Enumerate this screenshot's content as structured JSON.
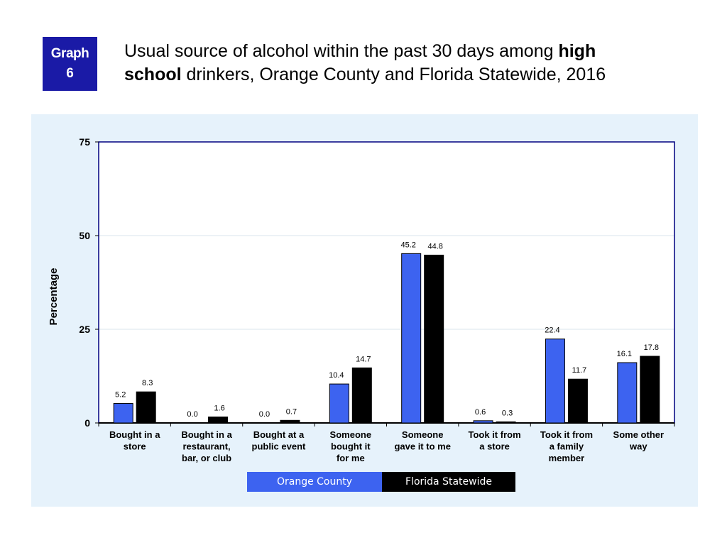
{
  "badge": {
    "line1": "Graph",
    "line2": "6"
  },
  "title": {
    "part1": "Usual source of alcohol within the past 30 days among ",
    "bold1": "high",
    "bold2": "school",
    "part2": " drinkers, Orange County and Florida Statewide, 2016"
  },
  "colors": {
    "orange_county": "#3d63f0",
    "florida": "#000000",
    "panel": "#e6f2fb",
    "badge": "#1a1aa6"
  },
  "chart_data": {
    "type": "bar",
    "ylabel": "Percentage",
    "xlabel": "",
    "ylim": [
      0,
      75
    ],
    "yticks": [
      0,
      25,
      50,
      75
    ],
    "grid": true,
    "legend_placement": "bottom",
    "categories": [
      [
        "Bought in a",
        "store"
      ],
      [
        "Bought in a",
        "restaurant,",
        "bar, or club"
      ],
      [
        "Bought at a",
        "public event"
      ],
      [
        "Someone",
        "bought it",
        "for me"
      ],
      [
        "Someone",
        "gave it to me"
      ],
      [
        "Took it from",
        "a store"
      ],
      [
        "Took it from",
        "a family",
        "member"
      ],
      [
        "Some other",
        "way"
      ]
    ],
    "series": [
      {
        "name": "Orange County",
        "values": [
          5.2,
          0.0,
          0.0,
          10.4,
          45.2,
          0.6,
          22.4,
          16.1
        ],
        "labels": [
          "5.2",
          "0.0",
          "0.0",
          "10.4",
          "45.2",
          "0.6",
          "22.4",
          "16.1"
        ]
      },
      {
        "name": "Florida Statewide",
        "values": [
          8.3,
          1.6,
          0.7,
          14.7,
          44.8,
          0.3,
          11.7,
          17.8
        ],
        "labels": [
          "8.3",
          "1.6",
          "0.7",
          "14.7",
          "44.8",
          "0.3",
          "11.7",
          "17.8"
        ]
      }
    ]
  }
}
